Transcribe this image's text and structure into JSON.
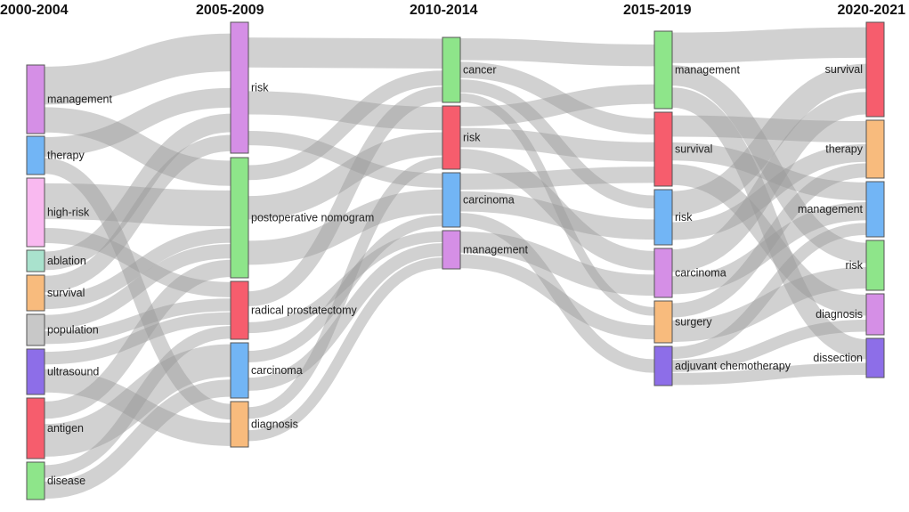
{
  "diagram": {
    "type": "sankey",
    "periods": [
      "2000-2004",
      "2005-2009",
      "2010-2014",
      "2015-2019",
      "2020-2021"
    ],
    "nodes": [
      {
        "id": "p1-management",
        "period": 0,
        "label": "management",
        "color": "#d58fe6"
      },
      {
        "id": "p1-therapy",
        "period": 0,
        "label": "therapy",
        "color": "#72b5f5"
      },
      {
        "id": "p1-high-risk",
        "period": 0,
        "label": "high-risk",
        "color": "#f9b9f0"
      },
      {
        "id": "p1-ablation",
        "period": 0,
        "label": "ablation",
        "color": "#a9e2cd"
      },
      {
        "id": "p1-survival",
        "period": 0,
        "label": "survival",
        "color": "#f8bb7d"
      },
      {
        "id": "p1-population",
        "period": 0,
        "label": "population",
        "color": "#c8c8c8"
      },
      {
        "id": "p1-ultrasound",
        "period": 0,
        "label": "ultrasound",
        "color": "#8d6ee8"
      },
      {
        "id": "p1-antigen",
        "period": 0,
        "label": "antigen",
        "color": "#f65d6d"
      },
      {
        "id": "p1-disease",
        "period": 0,
        "label": "disease",
        "color": "#8ee58a"
      },
      {
        "id": "p2-risk",
        "period": 1,
        "label": "risk",
        "color": "#d58fe6"
      },
      {
        "id": "p2-postoperative-nomogram",
        "period": 1,
        "label": "postoperative nomogram",
        "color": "#8ee58a"
      },
      {
        "id": "p2-radical-prostatectomy",
        "period": 1,
        "label": "radical prostatectomy",
        "color": "#f65d6d"
      },
      {
        "id": "p2-carcinoma",
        "period": 1,
        "label": "carcinoma",
        "color": "#72b5f5"
      },
      {
        "id": "p2-diagnosis",
        "period": 1,
        "label": "diagnosis",
        "color": "#f8bb7d"
      },
      {
        "id": "p3-cancer",
        "period": 2,
        "label": "cancer",
        "color": "#8ee58a"
      },
      {
        "id": "p3-risk",
        "period": 2,
        "label": "risk",
        "color": "#f65d6d"
      },
      {
        "id": "p3-carcinoma",
        "period": 2,
        "label": "carcinoma",
        "color": "#72b5f5"
      },
      {
        "id": "p3-management",
        "period": 2,
        "label": "management",
        "color": "#d58fe6"
      },
      {
        "id": "p4-management",
        "period": 3,
        "label": "management",
        "color": "#8ee58a"
      },
      {
        "id": "p4-survival",
        "period": 3,
        "label": "survival",
        "color": "#f65d6d"
      },
      {
        "id": "p4-risk",
        "period": 3,
        "label": "risk",
        "color": "#72b5f5"
      },
      {
        "id": "p4-carcinoma",
        "period": 3,
        "label": "carcinoma",
        "color": "#d58fe6"
      },
      {
        "id": "p4-surgery",
        "period": 3,
        "label": "surgery",
        "color": "#f8bb7d"
      },
      {
        "id": "p4-adjuvant-chemotherapy",
        "period": 3,
        "label": "adjuvant chemotherapy",
        "color": "#8d6ee8"
      },
      {
        "id": "p5-survival",
        "period": 4,
        "label": "survival",
        "color": "#f65d6d"
      },
      {
        "id": "p5-therapy",
        "period": 4,
        "label": "therapy",
        "color": "#f8bb7d"
      },
      {
        "id": "p5-management",
        "period": 4,
        "label": "management",
        "color": "#72b5f5"
      },
      {
        "id": "p5-risk",
        "period": 4,
        "label": "risk",
        "color": "#8ee58a"
      },
      {
        "id": "p5-diagnosis",
        "period": 4,
        "label": "diagnosis",
        "color": "#d58fe6"
      },
      {
        "id": "p5-dissection",
        "period": 4,
        "label": "dissection",
        "color": "#8d6ee8"
      }
    ],
    "links": [
      {
        "source": "p1-management",
        "target": "p2-risk",
        "value": 3
      },
      {
        "source": "p1-management",
        "target": "p2-postoperative-nomogram",
        "value": 2
      },
      {
        "source": "p1-therapy",
        "target": "p2-risk",
        "value": 1.5
      },
      {
        "source": "p1-therapy",
        "target": "p2-diagnosis",
        "value": 1.2
      },
      {
        "source": "p1-high-risk",
        "target": "p2-postoperative-nomogram",
        "value": 2.5
      },
      {
        "source": "p1-high-risk",
        "target": "p2-radical-prostatectomy",
        "value": 1.2
      },
      {
        "source": "p1-ablation",
        "target": "p2-risk",
        "value": 1
      },
      {
        "source": "p1-survival",
        "target": "p2-risk",
        "value": 1
      },
      {
        "source": "p1-survival",
        "target": "p2-postoperative-nomogram",
        "value": 1
      },
      {
        "source": "p1-population",
        "target": "p2-radical-prostatectomy",
        "value": 1
      },
      {
        "source": "p1-population",
        "target": "p2-postoperative-nomogram",
        "value": 1
      },
      {
        "source": "p1-ultrasound",
        "target": "p2-radical-prostatectomy",
        "value": 1
      },
      {
        "source": "p1-ultrasound",
        "target": "p2-diagnosis",
        "value": 1.5
      },
      {
        "source": "p1-antigen",
        "target": "p2-carcinoma",
        "value": 1.8
      },
      {
        "source": "p1-antigen",
        "target": "p2-postoperative-nomogram",
        "value": 1.2
      },
      {
        "source": "p1-disease",
        "target": "p2-carcinoma",
        "value": 1
      },
      {
        "source": "p1-disease",
        "target": "p2-radical-prostatectomy",
        "value": 1
      },
      {
        "source": "p2-risk",
        "target": "p3-cancer",
        "value": 3
      },
      {
        "source": "p2-risk",
        "target": "p3-risk",
        "value": 2
      },
      {
        "source": "p2-risk",
        "target": "p3-carcinoma",
        "value": 1.5
      },
      {
        "source": "p2-postoperative-nomogram",
        "target": "p3-risk",
        "value": 2
      },
      {
        "source": "p2-postoperative-nomogram",
        "target": "p3-carcinoma",
        "value": 2.5
      },
      {
        "source": "p2-postoperative-nomogram",
        "target": "p3-cancer",
        "value": 1.5
      },
      {
        "source": "p2-radical-prostatectomy",
        "target": "p3-cancer",
        "value": 1.5
      },
      {
        "source": "p2-radical-prostatectomy",
        "target": "p3-management",
        "value": 1
      },
      {
        "source": "p2-carcinoma",
        "target": "p3-carcinoma",
        "value": 1.2
      },
      {
        "source": "p2-carcinoma",
        "target": "p3-management",
        "value": 1.2
      },
      {
        "source": "p2-diagnosis",
        "target": "p3-management",
        "value": 1
      },
      {
        "source": "p2-diagnosis",
        "target": "p3-risk",
        "value": 1
      },
      {
        "source": "p3-cancer",
        "target": "p4-management",
        "value": 2
      },
      {
        "source": "p3-cancer",
        "target": "p4-survival",
        "value": 1.5
      },
      {
        "source": "p3-cancer",
        "target": "p4-risk",
        "value": 1.2
      },
      {
        "source": "p3-cancer",
        "target": "p4-surgery",
        "value": 0.8
      },
      {
        "source": "p3-risk",
        "target": "p4-management",
        "value": 1.2
      },
      {
        "source": "p3-risk",
        "target": "p4-carcinoma",
        "value": 1.2
      },
      {
        "source": "p3-risk",
        "target": "p4-survival",
        "value": 1.2
      },
      {
        "source": "p3-carcinoma",
        "target": "p4-risk",
        "value": 1.5
      },
      {
        "source": "p3-carcinoma",
        "target": "p4-survival",
        "value": 1.2
      },
      {
        "source": "p3-carcinoma",
        "target": "p4-adjuvant-chemotherapy",
        "value": 1
      },
      {
        "source": "p3-management",
        "target": "p4-carcinoma",
        "value": 1.2
      },
      {
        "source": "p3-management",
        "target": "p4-surgery",
        "value": 0.8
      },
      {
        "source": "p4-management",
        "target": "p5-survival",
        "value": 1.5
      },
      {
        "source": "p4-management",
        "target": "p5-risk",
        "value": 1
      },
      {
        "source": "p4-management",
        "target": "p5-dissection",
        "value": 1
      },
      {
        "source": "p4-survival",
        "target": "p5-therapy",
        "value": 1.2
      },
      {
        "source": "p4-survival",
        "target": "p5-management",
        "value": 1
      },
      {
        "source": "p4-survival",
        "target": "p5-diagnosis",
        "value": 1
      },
      {
        "source": "p4-risk",
        "target": "p5-survival",
        "value": 1
      },
      {
        "source": "p4-risk",
        "target": "p5-therapy",
        "value": 1
      },
      {
        "source": "p4-carcinoma",
        "target": "p5-management",
        "value": 1
      },
      {
        "source": "p4-carcinoma",
        "target": "p5-survival",
        "value": 1
      },
      {
        "source": "p4-surgery",
        "target": "p5-therapy",
        "value": 0.8
      },
      {
        "source": "p4-surgery",
        "target": "p5-risk",
        "value": 1
      },
      {
        "source": "p4-adjuvant-chemotherapy",
        "target": "p5-diagnosis",
        "value": 0.8
      },
      {
        "source": "p4-adjuvant-chemotherapy",
        "target": "p5-management",
        "value": 0.8
      },
      {
        "source": "p4-adjuvant-chemotherapy",
        "target": "p5-dissection",
        "value": 0.8
      }
    ]
  }
}
